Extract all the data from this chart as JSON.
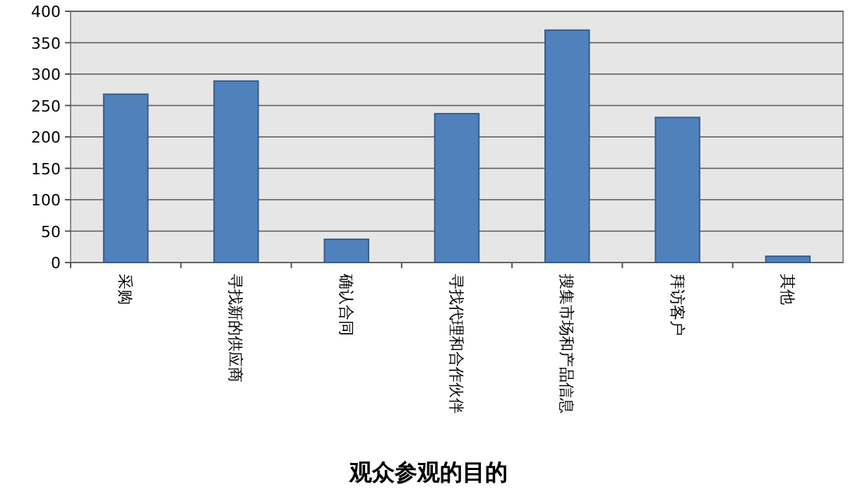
{
  "chart_data": {
    "type": "bar",
    "title": "观众参观的目的",
    "categories": [
      "采购",
      "寻找新的供应商",
      "确认合同",
      "寻找代理和合作伙伴",
      "搜集市场和产品信息",
      "拜访客户",
      "其他"
    ],
    "values": [
      268,
      289,
      37,
      237,
      370,
      231,
      10
    ],
    "color": "#4f81bd",
    "ylim": [
      0,
      400
    ],
    "yticks": [
      0,
      50,
      100,
      150,
      200,
      250,
      300,
      350,
      400
    ],
    "grid": "y"
  }
}
